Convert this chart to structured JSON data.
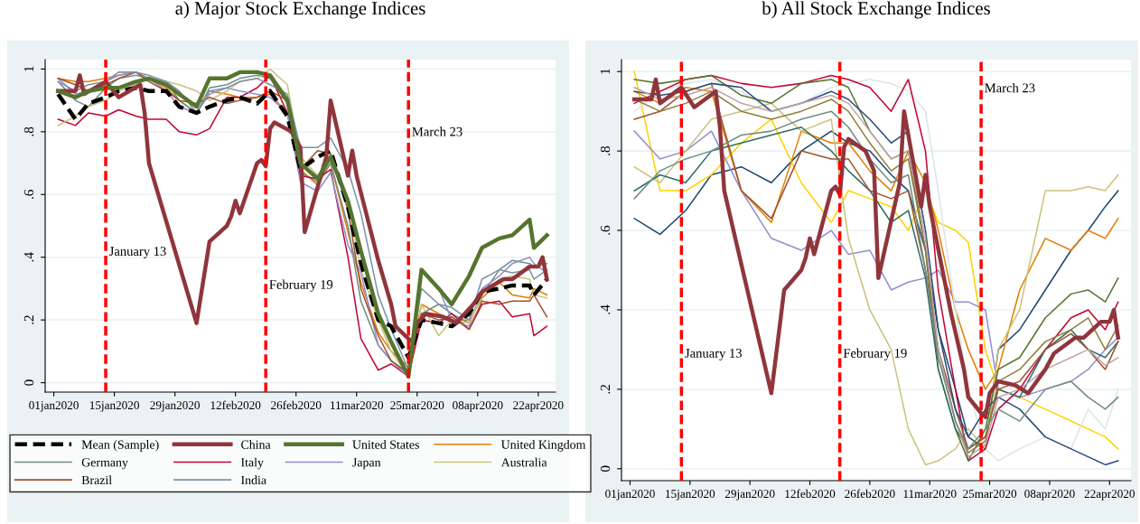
{
  "chart_data": [
    {
      "type": "line",
      "title": "a) Major Stock Exchange Indices",
      "x": [
        "2020-01-02",
        "2020-01-06",
        "2020-01-09",
        "2020-01-13",
        "2020-01-16",
        "2020-01-20",
        "2020-01-23",
        "2020-01-27",
        "2020-01-30",
        "2020-02-03",
        "2020-02-06",
        "2020-02-10",
        "2020-02-13",
        "2020-02-17",
        "2020-02-20",
        "2020-02-24",
        "2020-02-27",
        "2020-03-02",
        "2020-03-05",
        "2020-03-09",
        "2020-03-12",
        "2020-03-16",
        "2020-03-19",
        "2020-03-23",
        "2020-03-26",
        "2020-03-30",
        "2020-04-02",
        "2020-04-06",
        "2020-04-09",
        "2020-04-13",
        "2020-04-16",
        "2020-04-20",
        "2020-04-21",
        "2020-04-24"
      ],
      "series": [
        {
          "name": "Mean (Sample)",
          "color": "#000000",
          "line_style": "dashed",
          "values": [
            0.92,
            0.84,
            0.89,
            0.91,
            0.93,
            0.94,
            0.93,
            0.93,
            0.88,
            0.86,
            0.88,
            0.9,
            0.91,
            0.89,
            0.93,
            0.85,
            0.68,
            0.72,
            0.74,
            0.56,
            0.38,
            0.2,
            0.18,
            0.08,
            0.2,
            0.19,
            0.18,
            0.22,
            0.29,
            0.3,
            0.31,
            0.31,
            0.28,
            0.33
          ]
        },
        {
          "name": "China",
          "color": "#90353b",
          "x": [
            "2020-01-02",
            "2020-01-06",
            "2020-01-07",
            "2020-01-08",
            "2020-01-13",
            "2020-01-16",
            "2020-01-21",
            "2020-01-22",
            "2020-01-23",
            "2020-02-03",
            "2020-02-06",
            "2020-02-10",
            "2020-02-11",
            "2020-02-12",
            "2020-02-13",
            "2020-02-17",
            "2020-02-18",
            "2020-02-19",
            "2020-02-20",
            "2020-02-21",
            "2020-02-25",
            "2020-02-27",
            "2020-02-28",
            "2020-03-04",
            "2020-03-05",
            "2020-03-09",
            "2020-03-10",
            "2020-03-11",
            "2020-03-16",
            "2020-03-19",
            "2020-03-20",
            "2020-03-23",
            "2020-03-24",
            "2020-03-25",
            "2020-03-27",
            "2020-03-31",
            "2020-04-03",
            "2020-04-07",
            "2020-04-09",
            "2020-04-14",
            "2020-04-16",
            "2020-04-20",
            "2020-04-22",
            "2020-04-23",
            "2020-04-24"
          ],
          "values": [
            0.93,
            0.93,
            0.98,
            0.92,
            0.96,
            0.91,
            0.95,
            0.86,
            0.7,
            0.19,
            0.45,
            0.5,
            0.53,
            0.58,
            0.54,
            0.7,
            0.71,
            0.69,
            0.81,
            0.83,
            0.8,
            0.75,
            0.48,
            0.72,
            0.9,
            0.66,
            0.74,
            0.66,
            0.39,
            0.25,
            0.18,
            0.14,
            0.13,
            0.19,
            0.22,
            0.21,
            0.19,
            0.25,
            0.29,
            0.33,
            0.33,
            0.37,
            0.37,
            0.4,
            0.33
          ]
        },
        {
          "name": "United States",
          "color": "#55752f",
          "values": [
            0.93,
            0.91,
            0.93,
            0.94,
            0.94,
            0.96,
            0.97,
            0.95,
            0.92,
            0.88,
            0.97,
            0.97,
            0.99,
            0.99,
            0.98,
            0.9,
            0.7,
            0.65,
            0.72,
            0.58,
            0.42,
            0.22,
            0.13,
            0.02,
            0.36,
            0.3,
            0.25,
            0.34,
            0.43,
            0.46,
            0.47,
            0.52,
            0.43,
            0.47
          ]
        },
        {
          "name": "United Kingdom",
          "color": "#e37e00",
          "values": [
            0.97,
            0.96,
            0.96,
            0.97,
            0.98,
            0.99,
            0.97,
            0.94,
            0.9,
            0.86,
            0.93,
            0.92,
            0.91,
            0.91,
            0.92,
            0.86,
            0.68,
            0.63,
            0.7,
            0.48,
            0.32,
            0.16,
            0.1,
            0.05,
            0.25,
            0.22,
            0.2,
            0.2,
            0.27,
            0.32,
            0.28,
            0.27,
            0.3,
            0.28
          ]
        },
        {
          "name": "Germany",
          "color": "#6e8e84",
          "values": [
            0.96,
            0.9,
            0.88,
            0.94,
            0.97,
            0.98,
            0.97,
            0.96,
            0.9,
            0.86,
            0.94,
            0.95,
            0.97,
            0.98,
            0.97,
            0.89,
            0.67,
            0.64,
            0.7,
            0.5,
            0.26,
            0.12,
            0.07,
            0.03,
            0.22,
            0.25,
            0.22,
            0.19,
            0.28,
            0.36,
            0.39,
            0.38,
            0.37,
            0.38
          ]
        },
        {
          "name": "Italy",
          "color": "#c10534",
          "values": [
            0.84,
            0.82,
            0.86,
            0.85,
            0.87,
            0.85,
            0.84,
            0.84,
            0.8,
            0.79,
            0.81,
            0.91,
            0.91,
            0.94,
            0.98,
            0.86,
            0.66,
            0.65,
            0.68,
            0.4,
            0.14,
            0.04,
            0.06,
            0.02,
            0.2,
            0.19,
            0.22,
            0.17,
            0.25,
            0.26,
            0.21,
            0.22,
            0.15,
            0.18
          ]
        },
        {
          "name": "Japan",
          "color": "#938dd2",
          "values": [
            0.97,
            0.92,
            0.93,
            0.96,
            0.98,
            0.99,
            0.97,
            0.93,
            0.88,
            0.86,
            0.92,
            0.94,
            0.93,
            0.92,
            0.91,
            0.86,
            0.64,
            0.61,
            0.67,
            0.44,
            0.35,
            0.12,
            0.07,
            0.02,
            0.36,
            0.3,
            0.2,
            0.18,
            0.3,
            0.34,
            0.38,
            0.4,
            0.38,
            0.35
          ]
        },
        {
          "name": "Australia",
          "color": "#cac27e",
          "values": [
            0.82,
            0.85,
            0.88,
            0.9,
            0.93,
            0.95,
            0.97,
            0.96,
            0.95,
            0.93,
            0.9,
            0.93,
            0.96,
            0.97,
            1.0,
            0.95,
            0.72,
            0.66,
            0.72,
            0.58,
            0.36,
            0.2,
            0.1,
            0.02,
            0.25,
            0.15,
            0.2,
            0.19,
            0.28,
            0.33,
            0.34,
            0.33,
            0.28,
            0.27
          ]
        },
        {
          "name": "Brazil",
          "color": "#a0522d",
          "values": [
            0.97,
            0.95,
            0.93,
            0.95,
            0.97,
            0.99,
            0.96,
            0.93,
            0.9,
            0.89,
            0.91,
            0.89,
            0.9,
            0.91,
            0.93,
            0.9,
            0.68,
            0.74,
            0.73,
            0.55,
            0.3,
            0.15,
            0.07,
            0.03,
            0.22,
            0.2,
            0.21,
            0.17,
            0.26,
            0.25,
            0.26,
            0.26,
            0.28,
            0.21
          ]
        },
        {
          "name": "India",
          "color": "#7b92a8",
          "values": [
            0.96,
            0.93,
            0.95,
            0.96,
            0.99,
            0.99,
            0.98,
            0.96,
            0.93,
            0.86,
            0.93,
            0.94,
            0.96,
            0.97,
            0.95,
            0.92,
            0.75,
            0.75,
            0.78,
            0.68,
            0.54,
            0.28,
            0.17,
            0.04,
            0.3,
            0.25,
            0.24,
            0.2,
            0.33,
            0.36,
            0.35,
            0.36,
            0.33,
            0.36
          ]
        }
      ],
      "xlim": [
        "2019-12-30",
        "2020-04-26"
      ],
      "xticks": [
        {
          "value": "2020-01-01",
          "label": "01jan2020"
        },
        {
          "value": "2020-01-15",
          "label": "15jan2020"
        },
        {
          "value": "2020-01-29",
          "label": "29jan2020"
        },
        {
          "value": "2020-02-12",
          "label": "12feb2020"
        },
        {
          "value": "2020-02-26",
          "label": "26feb2020"
        },
        {
          "value": "2020-03-11",
          "label": "11mar2020"
        },
        {
          "value": "2020-03-25",
          "label": "25mar2020"
        },
        {
          "value": "2020-04-08",
          "label": "08apr2020"
        },
        {
          "value": "2020-04-22",
          "label": "22apr2020"
        }
      ],
      "ylim": [
        -0.03,
        1.03
      ],
      "yticks": [
        0,
        {
          "value": 0.2,
          "label": ".2"
        },
        {
          "value": 0.4,
          "label": ".4"
        },
        {
          "value": 0.6,
          "label": ".6"
        },
        {
          "value": 0.8,
          "label": ".8"
        },
        1
      ],
      "ref_lines": [
        {
          "axis": "x",
          "value": "2020-01-13",
          "label": "January 13",
          "color": "#ff0000",
          "line_style": "dashed"
        },
        {
          "axis": "x",
          "value": "2020-02-19",
          "label": "February 19",
          "color": "#ff0000",
          "line_style": "dashed"
        },
        {
          "axis": "x",
          "value": "2020-03-23",
          "label": "March 23",
          "color": "#ff0000",
          "line_style": "dashed"
        }
      ],
      "grid": "y",
      "legend": "bottom"
    },
    {
      "type": "line",
      "title": "b) All Stock Exchange Indices",
      "x": [
        "2020-01-02",
        "2020-01-08",
        "2020-01-14",
        "2020-01-20",
        "2020-01-27",
        "2020-02-03",
        "2020-02-10",
        "2020-02-17",
        "2020-02-21",
        "2020-02-26",
        "2020-03-02",
        "2020-03-06",
        "2020-03-10",
        "2020-03-13",
        "2020-03-17",
        "2020-03-20",
        "2020-03-24",
        "2020-03-27",
        "2020-04-01",
        "2020-04-07",
        "2020-04-13",
        "2020-04-17",
        "2020-04-21",
        "2020-04-24"
      ],
      "series": [
        {
          "color": "#1a476f",
          "values": [
            0.63,
            0.59,
            0.65,
            0.74,
            0.76,
            0.72,
            0.8,
            0.85,
            0.82,
            0.8,
            0.74,
            0.7,
            0.55,
            0.35,
            0.2,
            0.08,
            0.05,
            0.3,
            0.35,
            0.45,
            0.55,
            0.6,
            0.66,
            0.7
          ]
        },
        {
          "color": "#ffd200",
          "values": [
            1.0,
            0.7,
            0.7,
            0.74,
            0.82,
            0.88,
            0.72,
            0.62,
            0.7,
            0.68,
            0.66,
            0.6,
            0.7,
            0.62,
            0.6,
            0.57,
            0.3,
            0.2,
            0.18,
            0.15,
            0.12,
            0.1,
            0.08,
            0.05
          ]
        },
        {
          "color": "#938dd2",
          "values": [
            0.85,
            0.78,
            0.8,
            0.85,
            0.7,
            0.58,
            0.55,
            0.6,
            0.54,
            0.55,
            0.45,
            0.47,
            0.48,
            0.5,
            0.42,
            0.42,
            0.4,
            0.2,
            0.18,
            0.2,
            0.22,
            0.25,
            0.3,
            0.33
          ]
        },
        {
          "color": "#e37e00",
          "values": [
            0.95,
            0.92,
            0.96,
            0.95,
            0.7,
            0.62,
            0.85,
            0.82,
            0.82,
            0.75,
            0.7,
            0.8,
            0.72,
            0.6,
            0.4,
            0.3,
            0.2,
            0.25,
            0.45,
            0.58,
            0.55,
            0.6,
            0.58,
            0.63
          ]
        },
        {
          "color": "#cac27e",
          "values": [
            0.76,
            0.72,
            0.8,
            0.88,
            0.9,
            0.92,
            0.85,
            0.88,
            0.58,
            0.4,
            0.3,
            0.1,
            0.01,
            0.02,
            0.05,
            0.1,
            0.05,
            0.3,
            0.4,
            0.7,
            0.7,
            0.71,
            0.7,
            0.74
          ]
        },
        {
          "color": "#d9e6eb",
          "values": [
            0.9,
            0.95,
            0.97,
            0.98,
            0.95,
            0.9,
            0.92,
            0.96,
            0.97,
            0.98,
            0.97,
            0.95,
            0.9,
            0.7,
            0.4,
            0.2,
            0.05,
            0.02,
            0.05,
            0.08,
            0.05,
            0.15,
            0.1,
            0.2
          ]
        },
        {
          "color": "#c10534",
          "values": [
            0.92,
            0.95,
            0.98,
            0.99,
            0.97,
            0.96,
            0.97,
            0.99,
            0.98,
            0.96,
            0.9,
            0.98,
            0.8,
            0.45,
            0.2,
            0.02,
            0.05,
            0.15,
            0.2,
            0.3,
            0.38,
            0.4,
            0.35,
            0.42
          ]
        },
        {
          "color": "#55752f",
          "values": [
            0.98,
            0.97,
            0.98,
            0.99,
            0.94,
            0.92,
            0.97,
            0.98,
            0.96,
            0.85,
            0.78,
            0.8,
            0.55,
            0.25,
            0.1,
            0.02,
            0.1,
            0.25,
            0.28,
            0.38,
            0.44,
            0.45,
            0.42,
            0.48
          ]
        },
        {
          "color": "#2d6d66",
          "values": [
            0.7,
            0.74,
            0.72,
            0.8,
            0.82,
            0.84,
            0.86,
            0.8,
            0.75,
            0.7,
            0.62,
            0.65,
            0.48,
            0.25,
            0.1,
            0.05,
            0.08,
            0.2,
            0.18,
            0.3,
            0.35,
            0.3,
            0.28,
            0.32
          ]
        },
        {
          "color": "#a0522d",
          "values": [
            0.88,
            0.9,
            0.95,
            0.97,
            0.7,
            0.63,
            0.8,
            0.78,
            0.78,
            0.7,
            0.68,
            0.7,
            0.5,
            0.3,
            0.15,
            0.05,
            0.08,
            0.2,
            0.22,
            0.3,
            0.34,
            0.3,
            0.25,
            0.32
          ]
        },
        {
          "color": "#2a4b7c",
          "values": [
            0.95,
            0.94,
            0.95,
            0.97,
            0.96,
            0.9,
            0.92,
            0.95,
            0.93,
            0.88,
            0.82,
            0.85,
            0.6,
            0.35,
            0.15,
            0.08,
            0.15,
            0.18,
            0.15,
            0.08,
            0.05,
            0.03,
            0.01,
            0.02
          ]
        },
        {
          "color": "#8f7e3c",
          "values": [
            0.93,
            0.9,
            0.92,
            0.95,
            0.9,
            0.88,
            0.9,
            0.93,
            0.9,
            0.82,
            0.75,
            0.78,
            0.55,
            0.3,
            0.12,
            0.04,
            0.07,
            0.22,
            0.25,
            0.32,
            0.35,
            0.38,
            0.3,
            0.36
          ]
        },
        {
          "color": "#c4a3a8",
          "values": [
            0.96,
            0.93,
            0.94,
            0.96,
            0.92,
            0.9,
            0.92,
            0.94,
            0.92,
            0.85,
            0.78,
            0.8,
            0.58,
            0.3,
            0.12,
            0.03,
            0.06,
            0.18,
            0.2,
            0.25,
            0.28,
            0.3,
            0.26,
            0.28
          ]
        },
        {
          "color": "#6e8e84",
          "values": [
            0.68,
            0.75,
            0.78,
            0.8,
            0.84,
            0.85,
            0.88,
            0.9,
            0.86,
            0.78,
            0.72,
            0.74,
            0.5,
            0.28,
            0.12,
            0.05,
            0.1,
            0.15,
            0.12,
            0.2,
            0.22,
            0.18,
            0.15,
            0.18
          ]
        },
        {
          "color": "#90353b",
          "x": [
            "2020-01-02",
            "2020-01-06",
            "2020-01-07",
            "2020-01-08",
            "2020-01-13",
            "2020-01-16",
            "2020-01-21",
            "2020-01-22",
            "2020-01-23",
            "2020-02-03",
            "2020-02-06",
            "2020-02-10",
            "2020-02-11",
            "2020-02-12",
            "2020-02-13",
            "2020-02-17",
            "2020-02-18",
            "2020-02-19",
            "2020-02-20",
            "2020-02-21",
            "2020-02-25",
            "2020-02-27",
            "2020-02-28",
            "2020-03-04",
            "2020-03-05",
            "2020-03-09",
            "2020-03-10",
            "2020-03-11",
            "2020-03-16",
            "2020-03-19",
            "2020-03-20",
            "2020-03-23",
            "2020-03-24",
            "2020-03-25",
            "2020-03-27",
            "2020-03-31",
            "2020-04-03",
            "2020-04-07",
            "2020-04-09",
            "2020-04-14",
            "2020-04-16",
            "2020-04-20",
            "2020-04-22",
            "2020-04-23",
            "2020-04-24"
          ],
          "values": [
            0.93,
            0.93,
            0.98,
            0.92,
            0.96,
            0.91,
            0.95,
            0.86,
            0.7,
            0.19,
            0.45,
            0.5,
            0.53,
            0.58,
            0.54,
            0.7,
            0.71,
            0.69,
            0.81,
            0.83,
            0.8,
            0.75,
            0.48,
            0.72,
            0.9,
            0.66,
            0.74,
            0.66,
            0.39,
            0.25,
            0.18,
            0.14,
            0.13,
            0.19,
            0.22,
            0.21,
            0.19,
            0.25,
            0.29,
            0.33,
            0.33,
            0.37,
            0.37,
            0.4,
            0.33
          ]
        }
      ],
      "xlim": [
        "2019-12-30",
        "2020-04-27"
      ],
      "xticks": [
        {
          "value": "2020-01-01",
          "label": "01jan2020"
        },
        {
          "value": "2020-01-15",
          "label": "15jan2020"
        },
        {
          "value": "2020-01-29",
          "label": "29jan2020"
        },
        {
          "value": "2020-02-12",
          "label": "12feb2020"
        },
        {
          "value": "2020-02-26",
          "label": "26feb2020"
        },
        {
          "value": "2020-03-11",
          "label": "11mar2020"
        },
        {
          "value": "2020-03-25",
          "label": "25mar2020"
        },
        {
          "value": "2020-04-08",
          "label": "08apr2020"
        },
        {
          "value": "2020-04-22",
          "label": "22apr2020"
        }
      ],
      "ylim": [
        -0.03,
        1.03
      ],
      "yticks": [
        0,
        {
          "value": 0.2,
          "label": ".2"
        },
        {
          "value": 0.4,
          "label": ".4"
        },
        {
          "value": 0.6,
          "label": ".6"
        },
        {
          "value": 0.8,
          "label": ".8"
        },
        1
      ],
      "ref_lines": [
        {
          "axis": "x",
          "value": "2020-01-13",
          "label": "January 13",
          "color": "#ff0000",
          "line_style": "dashed"
        },
        {
          "axis": "x",
          "value": "2020-02-19",
          "label": "February 19",
          "color": "#ff0000",
          "line_style": "dashed"
        },
        {
          "axis": "x",
          "value": "2020-03-23",
          "label": "March 23",
          "color": "#ff0000",
          "line_style": "dashed"
        }
      ],
      "grid": "y"
    }
  ]
}
